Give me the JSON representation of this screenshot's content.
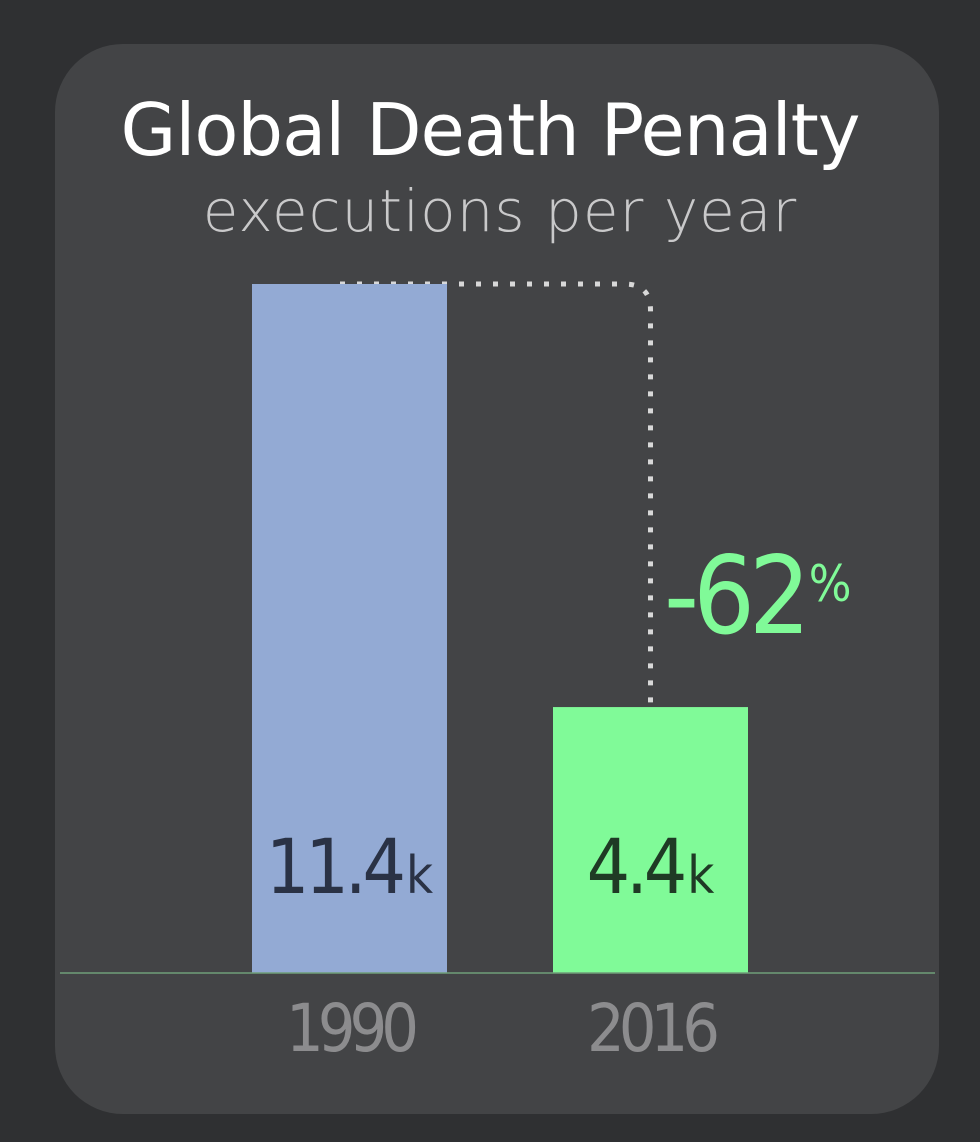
{
  "title": "Global Death Penalty",
  "subtitle": "executions per year",
  "change": {
    "value": "-62",
    "unit": "%"
  },
  "colors": {
    "background": "#2f3032",
    "card": "#434446",
    "bar_1990": "#93aad4",
    "bar_2016": "#80fa98",
    "change_text": "#80fa98",
    "year_label": "#8c8c8e",
    "value_label_1990": "#2a3245",
    "value_label_2016": "#1f3a25"
  },
  "chart_data": {
    "type": "bar",
    "categories": [
      "1990",
      "2016"
    ],
    "values": [
      11.4,
      4.4
    ],
    "value_labels": [
      {
        "number": "11.4",
        "unit": "k"
      },
      {
        "number": "4.4",
        "unit": "k"
      }
    ],
    "title": "Global Death Penalty",
    "subtitle": "executions per year",
    "ylim": [
      0,
      11.4
    ],
    "grid": false,
    "annotation": "-62%"
  }
}
